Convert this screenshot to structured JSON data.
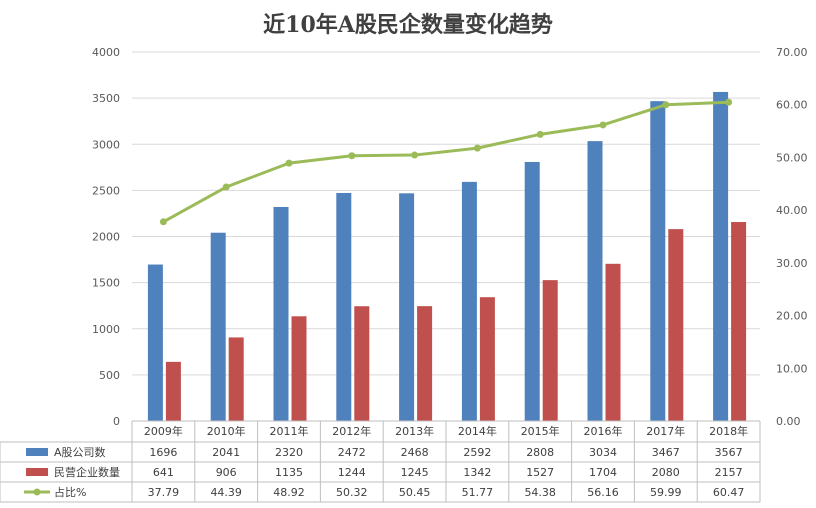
{
  "chart_data": {
    "type": "bar",
    "title": "近10年A股民企数量变化趋势",
    "categories": [
      "2009年",
      "2010年",
      "2011年",
      "2012年",
      "2013年",
      "2014年",
      "2015年",
      "2016年",
      "2017年",
      "2018年"
    ],
    "series": [
      {
        "name": "A股公司数",
        "type": "bar",
        "axis": "left",
        "color": "#4f81bd",
        "values": [
          1696,
          2041,
          2320,
          2472,
          2468,
          2592,
          2808,
          3034,
          3467,
          3567
        ],
        "labels": [
          "1696",
          "2041",
          "2320",
          "2472",
          "2468",
          "2592",
          "2808",
          "3034",
          "3467",
          "3567"
        ]
      },
      {
        "name": "民营企业数量",
        "type": "bar",
        "axis": "left",
        "color": "#c0504d",
        "values": [
          641,
          906,
          1135,
          1244,
          1245,
          1342,
          1527,
          1704,
          2080,
          2157
        ],
        "labels": [
          "641",
          "906",
          "1135",
          "1244",
          "1245",
          "1342",
          "1527",
          "1704",
          "2080",
          "2157"
        ]
      },
      {
        "name": "占比%",
        "type": "line",
        "axis": "right",
        "color": "#9bbb59",
        "values": [
          37.79,
          44.39,
          48.92,
          50.32,
          50.45,
          51.77,
          54.38,
          56.16,
          59.99,
          60.47
        ],
        "labels": [
          "37.79",
          "44.39",
          "48.92",
          "50.32",
          "50.45",
          "51.77",
          "54.38",
          "56.16",
          "59.99",
          "60.47"
        ]
      }
    ],
    "y_left": {
      "min": 0,
      "max": 4000,
      "ticks": [
        "0",
        "500",
        "1000",
        "1500",
        "2000",
        "2500",
        "3000",
        "3500",
        "4000"
      ]
    },
    "y_right": {
      "min": 0,
      "max": 70,
      "ticks": [
        "0.00",
        "10.00",
        "20.00",
        "30.00",
        "40.00",
        "50.00",
        "60.00",
        "70.00"
      ]
    },
    "grid": true,
    "legend": "data-table"
  }
}
